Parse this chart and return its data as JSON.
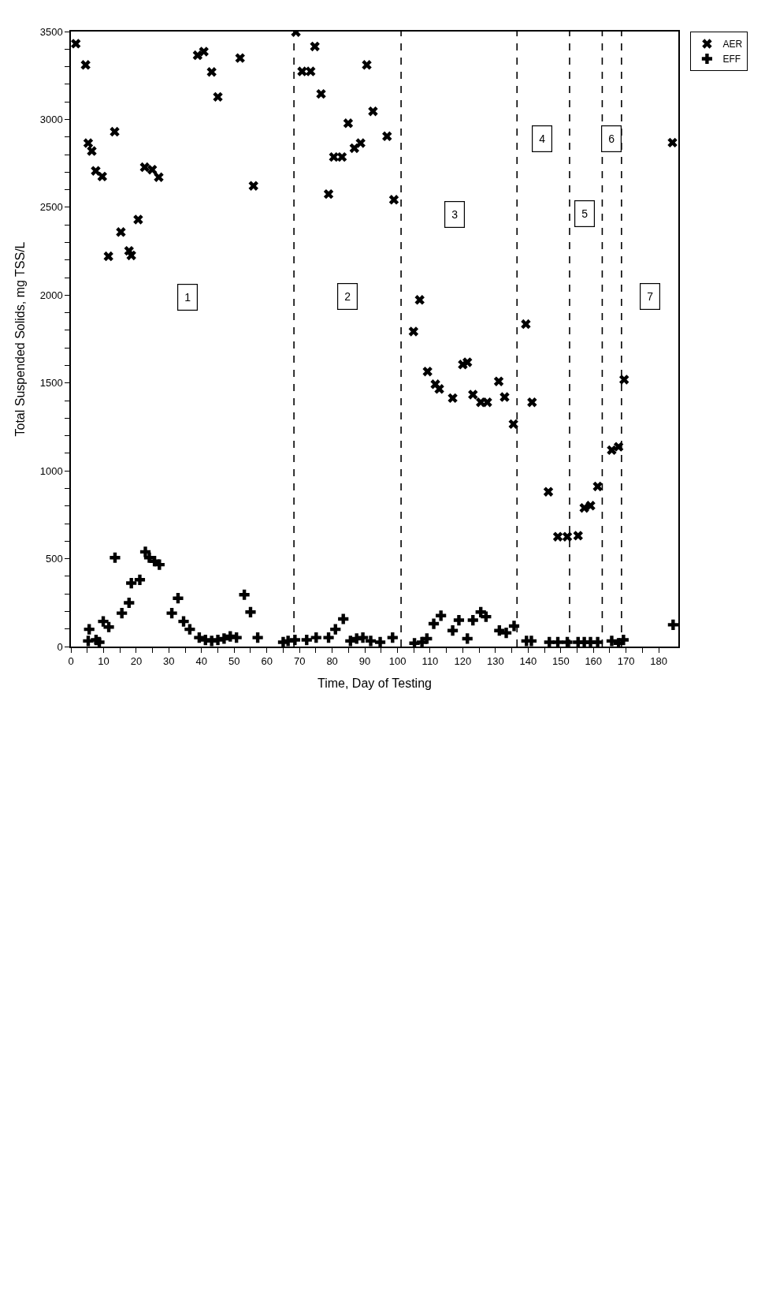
{
  "chart_data": {
    "type": "scatter",
    "xlabel": "Time, Day of Testing",
    "ylabel": "Total Suspended Solids, mg TSS/L",
    "xlim": [
      0,
      186
    ],
    "ylim": [
      0,
      3500
    ],
    "xticks": [
      0,
      {
        "value": 5,
        "label": null
      },
      10,
      {
        "value": 15,
        "label": null
      },
      20,
      {
        "value": 25,
        "label": null
      },
      30,
      {
        "value": 35,
        "label": null
      },
      40,
      {
        "value": 45,
        "label": null
      },
      50,
      {
        "value": 55,
        "label": null
      },
      60,
      {
        "value": 65,
        "label": null
      },
      70,
      {
        "value": 75,
        "label": null
      },
      80,
      {
        "value": 85,
        "label": null
      },
      90,
      {
        "value": 95,
        "label": null
      },
      100,
      {
        "value": 105,
        "label": null
      },
      110,
      {
        "value": 115,
        "label": null
      },
      120,
      {
        "value": 125,
        "label": null
      },
      130,
      {
        "value": 135,
        "label": null
      },
      140,
      {
        "value": 145,
        "label": null
      },
      150,
      {
        "value": 155,
        "label": null
      },
      160,
      {
        "value": 165,
        "label": null
      },
      170,
      {
        "value": 175,
        "label": null
      },
      180
    ],
    "yticks": [
      0,
      {
        "value": 100,
        "label": null
      },
      {
        "value": 200,
        "label": null
      },
      {
        "value": 300,
        "label": null
      },
      {
        "value": 400,
        "label": null
      },
      500,
      {
        "value": 600,
        "label": null
      },
      {
        "value": 700,
        "label": null
      },
      {
        "value": 800,
        "label": null
      },
      {
        "value": 900,
        "label": null
      },
      1000,
      {
        "value": 1100,
        "label": null
      },
      {
        "value": 1200,
        "label": null
      },
      {
        "value": 1300,
        "label": null
      },
      {
        "value": 1400,
        "label": null
      },
      1500,
      {
        "value": 1600,
        "label": null
      },
      {
        "value": 1700,
        "label": null
      },
      {
        "value": 1800,
        "label": null
      },
      {
        "value": 1900,
        "label": null
      },
      2000,
      {
        "value": 2100,
        "label": null
      },
      {
        "value": 2200,
        "label": null
      },
      {
        "value": 2300,
        "label": null
      },
      {
        "value": 2400,
        "label": null
      },
      2500,
      {
        "value": 2600,
        "label": null
      },
      {
        "value": 2700,
        "label": null
      },
      {
        "value": 2800,
        "label": null
      },
      {
        "value": 2900,
        "label": null
      },
      3000,
      {
        "value": 3100,
        "label": null
      },
      {
        "value": 3200,
        "label": null
      },
      {
        "value": 3300,
        "label": null
      },
      {
        "value": 3400,
        "label": null
      },
      3500
    ],
    "grid": false,
    "legend": "right",
    "series": [
      {
        "name": "AER",
        "color": "#000000",
        "marker": "x",
        "x": [
          1.5,
          4.5,
          5.3,
          6.4,
          7.6,
          9.6,
          11.5,
          13.4,
          15.3,
          17.8,
          18.5,
          20.6,
          22.6,
          24.9,
          26.9,
          38.8,
          40.7,
          43.1,
          45,
          51.8,
          55.9,
          68.9,
          70.8,
          73.4,
          74.7,
          76.6,
          78.9,
          80.5,
          83,
          84.9,
          86.8,
          88.7,
          90.6,
          92.5,
          96.8,
          98.9,
          104.9,
          106.8,
          109.2,
          111.6,
          112.8,
          116.9,
          120,
          121.4,
          123.1,
          125.5,
          127.5,
          131,
          132.8,
          135.5,
          139.3,
          141.2,
          146.2,
          149.1,
          152,
          155.3,
          157.2,
          159.1,
          161.3,
          165.6,
          167.7,
          169.4,
          184.2
        ],
        "values": [
          3431,
          3310,
          2865,
          2820,
          2707,
          2675,
          2221,
          2930,
          2359,
          2252,
          2226,
          2430,
          2728,
          2714,
          2671,
          3365,
          3386,
          3270,
          3128,
          3349,
          2622,
          3497,
          3273,
          3273,
          3415,
          3145,
          2575,
          2786,
          2786,
          2978,
          2836,
          2865,
          3310,
          3046,
          2904,
          2543,
          1793,
          1973,
          1565,
          1493,
          1466,
          1414,
          1605,
          1618,
          1434,
          1390,
          1390,
          1509,
          1420,
          1266,
          1835,
          1390,
          881,
          625,
          625,
          631,
          789,
          802,
          911,
          1118,
          1137,
          1519,
          2868
        ]
      },
      {
        "name": "EFF",
        "color": "#000000",
        "marker": "cross",
        "x": [
          5.3,
          5.6,
          7.7,
          8.7,
          9.9,
          11.6,
          13.5,
          15.6,
          17.8,
          18.5,
          21.1,
          22.8,
          24,
          25.6,
          27.1,
          30.9,
          32.8,
          34.5,
          36.4,
          39.3,
          41.2,
          43.1,
          45,
          46.9,
          48.8,
          50.7,
          53.1,
          55,
          57.2,
          65,
          66.5,
          68.6,
          72.2,
          75.1,
          78.9,
          81,
          83.4,
          85.6,
          87.5,
          89.4,
          91.8,
          94.7,
          98.5,
          105.2,
          107.5,
          109,
          111.1,
          113.3,
          116.9,
          118.8,
          121.4,
          123.1,
          125.5,
          127.1,
          131.2,
          133.3,
          135.7,
          139.5,
          141,
          146.5,
          149.1,
          152,
          155.3,
          157.2,
          159.1,
          161.3,
          165.6,
          167.7,
          169.2,
          184.4
        ],
        "values": [
          32,
          98,
          38,
          25,
          143,
          111,
          506,
          190,
          249,
          361,
          380,
          539,
          506,
          486,
          466,
          190,
          275,
          143,
          98,
          51,
          38,
          32,
          38,
          45,
          58,
          51,
          295,
          196,
          51,
          25,
          32,
          38,
          38,
          51,
          51,
          98,
          157,
          32,
          45,
          51,
          32,
          25,
          51,
          19,
          25,
          45,
          130,
          176,
          91,
          150,
          45,
          150,
          196,
          170,
          91,
          78,
          117,
          32,
          32,
          25,
          25,
          25,
          25,
          25,
          25,
          25,
          32,
          19,
          38,
          124
        ]
      }
    ],
    "ref_lines": [
      {
        "axis": "x",
        "value": 68.3,
        "line_style": "dashed",
        "color": "#000000"
      },
      {
        "axis": "x",
        "value": 101.1,
        "line_style": "dashed",
        "color": "#000000"
      },
      {
        "axis": "x",
        "value": 136.6,
        "line_style": "dashed",
        "color": "#000000"
      },
      {
        "axis": "x",
        "value": 152.7,
        "line_style": "dashed",
        "color": "#000000"
      },
      {
        "axis": "x",
        "value": 162.7,
        "line_style": "dashed",
        "color": "#000000"
      },
      {
        "axis": "x",
        "value": 168.6,
        "line_style": "dashed",
        "color": "#000000"
      }
    ],
    "annotations": [
      {
        "text": "1",
        "x": 35.7,
        "y": 1989
      },
      {
        "text": "2",
        "x": 84.6,
        "y": 1993
      },
      {
        "text": "3",
        "x": 117.6,
        "y": 2460
      },
      {
        "text": "4",
        "x": 144.2,
        "y": 2892
      },
      {
        "text": "5",
        "x": 157.4,
        "y": 2464
      },
      {
        "text": "6",
        "x": 165.6,
        "y": 2892
      },
      {
        "text": "7",
        "x": 177.3,
        "y": 1993
      }
    ]
  }
}
